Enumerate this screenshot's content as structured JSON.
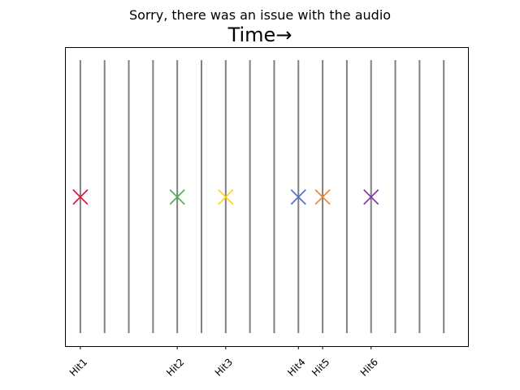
{
  "chart_data": {
    "type": "scatter",
    "title": "Time→",
    "subtitle": "Sorry, there was an issue with the audio",
    "xlabel": "",
    "ylabel": "",
    "grid": false,
    "legend": "none",
    "vertical_lines_x": [
      1,
      2,
      3,
      4,
      5,
      6,
      7,
      8,
      9,
      10,
      11,
      12,
      13,
      14,
      15,
      16
    ],
    "vertical_line_color": "#808080",
    "x_tick_values": [
      1,
      5,
      7,
      10,
      11,
      13
    ],
    "x_tick_labels": [
      "Hit1",
      "Hit2",
      "Hit3",
      "Hit4",
      "Hit5",
      "Hit6"
    ],
    "xlim": [
      0.4,
      17.0
    ],
    "ylim": [
      0,
      1
    ],
    "series": [
      {
        "name": "Hit1",
        "x": 1,
        "y": 0.5,
        "color": "#dc143c",
        "marker": "x"
      },
      {
        "name": "Hit2",
        "x": 5,
        "y": 0.5,
        "color": "#4caf50",
        "marker": "x"
      },
      {
        "name": "Hit3",
        "x": 7,
        "y": 0.5,
        "color": "#ffd21f",
        "marker": "x"
      },
      {
        "name": "Hit4",
        "x": 10,
        "y": 0.5,
        "color": "#5470c6",
        "marker": "x"
      },
      {
        "name": "Hit5",
        "x": 11,
        "y": 0.5,
        "color": "#e8883a",
        "marker": "x"
      },
      {
        "name": "Hit6",
        "x": 13,
        "y": 0.5,
        "color": "#8e2ea8",
        "marker": "x"
      }
    ]
  }
}
